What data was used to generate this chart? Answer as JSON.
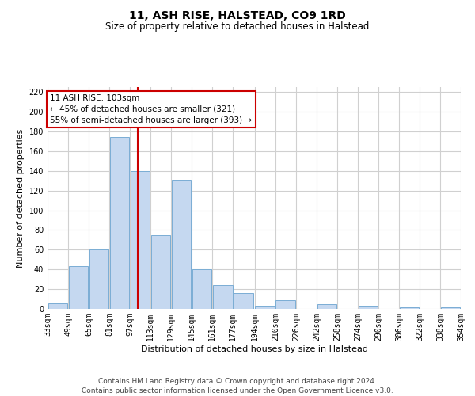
{
  "title": "11, ASH RISE, HALSTEAD, CO9 1RD",
  "subtitle": "Size of property relative to detached houses in Halstead",
  "xlabel": "Distribution of detached houses by size in Halstead",
  "ylabel": "Number of detached properties",
  "bar_color": "#c5d8f0",
  "bar_edge_color": "#7aadd4",
  "grid_color": "#d0d0d0",
  "annotation_line_color": "#cc0000",
  "annotation_box_edge": "#cc0000",
  "annotation_text": [
    "11 ASH RISE: 103sqm",
    "← 45% of detached houses are smaller (321)",
    "55% of semi-detached houses are larger (393) →"
  ],
  "property_size": 103,
  "bins": [
    33,
    49,
    65,
    81,
    97,
    113,
    129,
    145,
    161,
    177,
    194,
    210,
    226,
    242,
    258,
    274,
    290,
    306,
    322,
    338,
    354
  ],
  "counts": [
    6,
    43,
    60,
    174,
    140,
    75,
    131,
    40,
    24,
    16,
    3,
    9,
    0,
    5,
    0,
    3,
    0,
    2,
    0,
    2
  ],
  "tick_labels": [
    "33sqm",
    "49sqm",
    "65sqm",
    "81sqm",
    "97sqm",
    "113sqm",
    "129sqm",
    "145sqm",
    "161sqm",
    "177sqm",
    "194sqm",
    "210sqm",
    "226sqm",
    "242sqm",
    "258sqm",
    "274sqm",
    "290sqm",
    "306sqm",
    "322sqm",
    "338sqm",
    "354sqm"
  ],
  "ylim": [
    0,
    225
  ],
  "yticks": [
    0,
    20,
    40,
    60,
    80,
    100,
    120,
    140,
    160,
    180,
    200,
    220
  ],
  "footer": [
    "Contains HM Land Registry data © Crown copyright and database right 2024.",
    "Contains public sector information licensed under the Open Government Licence v3.0."
  ],
  "background_color": "#ffffff",
  "title_fontsize": 10,
  "subtitle_fontsize": 8.5,
  "ylabel_fontsize": 8,
  "xlabel_fontsize": 8,
  "tick_fontsize": 7,
  "footer_fontsize": 6.5
}
